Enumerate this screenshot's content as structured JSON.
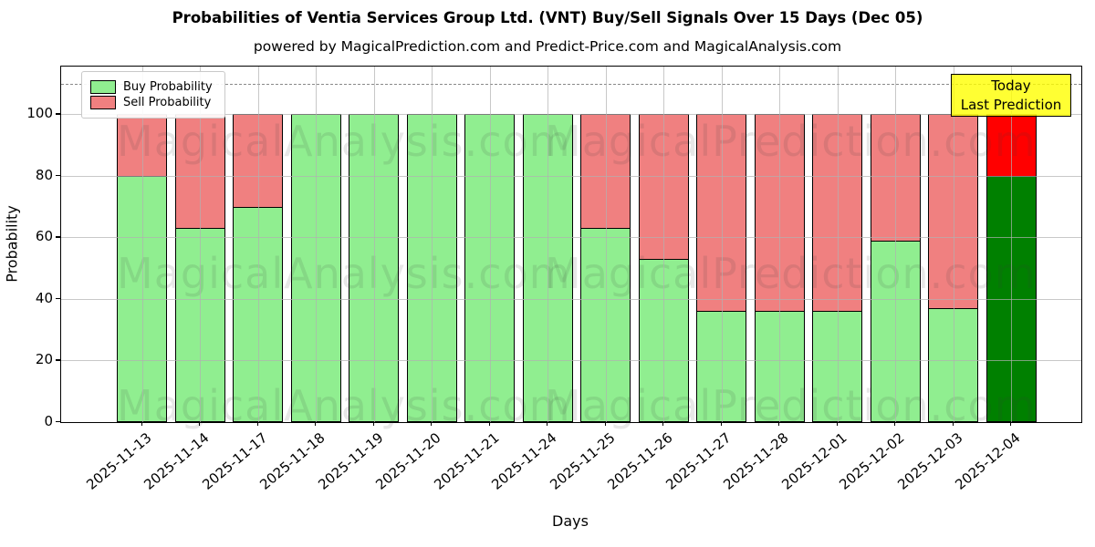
{
  "title": "Probabilities of Ventia Services Group Ltd. (VNT) Buy/Sell Signals Over 15 Days (Dec 05)",
  "subtitle": "powered by MagicalPrediction.com and Predict-Price.com and MagicalAnalysis.com",
  "legend": {
    "items": [
      {
        "label": "Buy Probability",
        "color": "#90ee90"
      },
      {
        "label": "Sell Probability",
        "color": "#f08080"
      }
    ]
  },
  "annotation_box": {
    "lines": [
      "Today",
      "Last Prediction"
    ],
    "bg_color": "#ffff00"
  },
  "watermarks": {
    "left": "MagicalAnalysis.com",
    "right": "MagicalPrediction.com"
  },
  "chart_data": {
    "type": "bar",
    "stacked": true,
    "title": "Probabilities of Ventia Services Group Ltd. (VNT) Buy/Sell Signals Over 15 Days (Dec 05)",
    "xlabel": "Days",
    "ylabel": "Probability",
    "categories": [
      "2025-11-13",
      "2025-11-14",
      "2025-11-17",
      "2025-11-18",
      "2025-11-19",
      "2025-11-20",
      "2025-11-21",
      "2025-11-24",
      "2025-11-25",
      "2025-11-26",
      "2025-11-27",
      "2025-11-28",
      "2025-12-01",
      "2025-12-02",
      "2025-12-03",
      "2025-12-04"
    ],
    "series": [
      {
        "name": "Buy Probability",
        "color": "#90ee90",
        "values": [
          80,
          63,
          70,
          100,
          100,
          100,
          100,
          100,
          63,
          53,
          36,
          36,
          36,
          59,
          37,
          80
        ]
      },
      {
        "name": "Sell Probability",
        "color": "#f08080",
        "values": [
          20,
          37,
          30,
          0,
          0,
          0,
          0,
          0,
          37,
          47,
          64,
          64,
          64,
          41,
          63,
          20
        ]
      }
    ],
    "today_bar": {
      "category": "2025-12-04",
      "buy_color": "#008000",
      "sell_color": "#ff0000"
    },
    "ylim": [
      0,
      115.5
    ],
    "yticks": [
      0,
      20,
      40,
      60,
      80,
      100
    ],
    "dashed_line_y": 110,
    "grid": true,
    "legend_position": "upper left"
  }
}
